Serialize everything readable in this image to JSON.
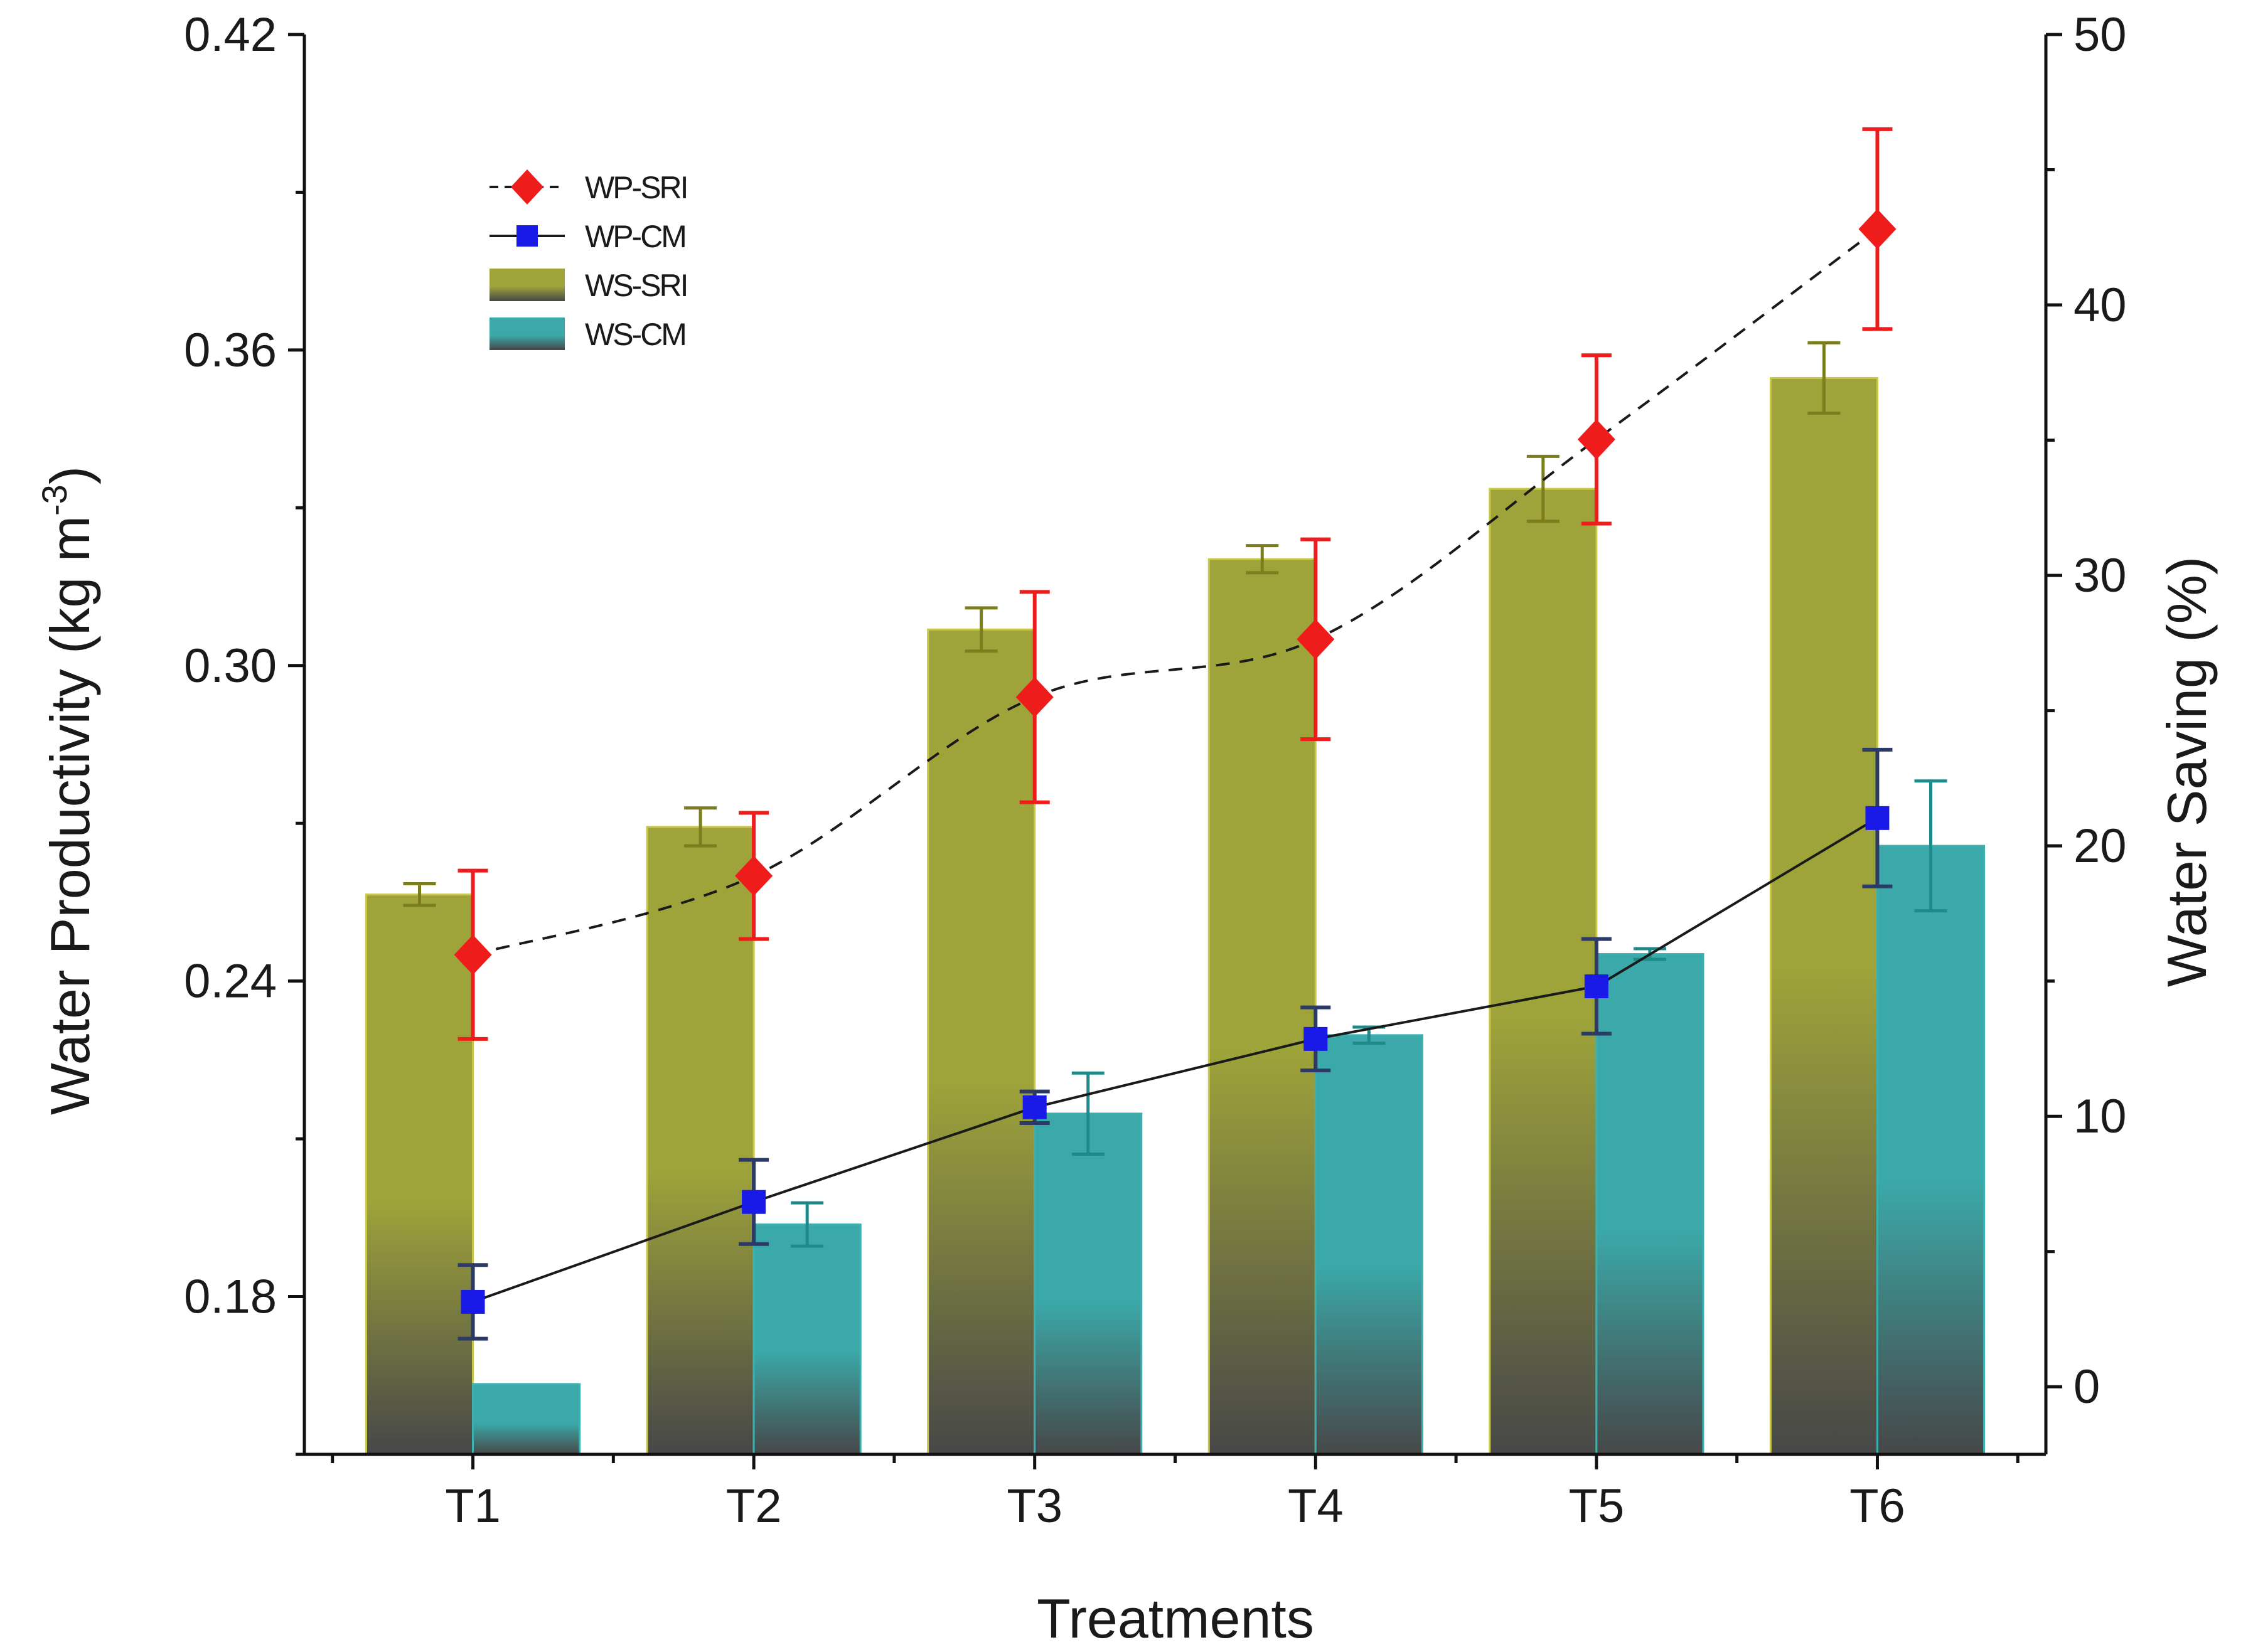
{
  "chart_data": {
    "type": "bar",
    "categories": [
      "T1",
      "T2",
      "T3",
      "T4",
      "T5",
      "T6"
    ],
    "xlabel": "Treatments",
    "ylabel": "Water Productivity (kg m",
    "ylabel_sup": "-3",
    "ylabel_close": ")",
    "y2label": "Water Saving (%)",
    "ylim": [
      0.15,
      0.42
    ],
    "y2lim": [
      -2.5,
      50
    ],
    "yticks": [
      0.18,
      0.24,
      0.3,
      0.36,
      0.42
    ],
    "ytick_labels": [
      "0.18",
      "0.24",
      "0.30",
      "0.36",
      "0.42"
    ],
    "y2ticks": [
      0,
      10,
      20,
      30,
      40,
      50
    ],
    "y2tick_labels": [
      "0",
      "10",
      "20",
      "30",
      "40",
      "50"
    ],
    "bar_series": [
      {
        "name": "WS-SRI",
        "axis": "right",
        "color": "#9ea33a",
        "color_dark": "#474748",
        "values": [
          18.2,
          20.7,
          28.0,
          30.6,
          33.2,
          37.3
        ],
        "errors": [
          0.4,
          0.7,
          0.8,
          0.5,
          1.2,
          1.3
        ]
      },
      {
        "name": "WS-CM",
        "axis": "right",
        "color": "#3ba9a9",
        "color_dark": "#474748",
        "values": [
          0.1,
          6.0,
          10.1,
          13.0,
          16.0,
          20.0
        ],
        "errors": [
          0.0,
          0.8,
          1.5,
          0.3,
          0.2,
          2.4
        ]
      }
    ],
    "line_series": [
      {
        "name": "WP-SRI",
        "axis": "left",
        "color": "#ef1c1c",
        "marker": "diamond",
        "line_style": "dashed",
        "values": [
          0.245,
          0.26,
          0.294,
          0.305,
          0.343,
          0.383
        ],
        "errors": [
          0.016,
          0.012,
          0.02,
          0.019,
          0.016,
          0.019
        ]
      },
      {
        "name": "WP-CM",
        "axis": "left",
        "color": "#1a1ae8",
        "marker": "square",
        "line_style": "solid",
        "values": [
          0.179,
          0.198,
          0.216,
          0.229,
          0.239,
          0.271
        ],
        "errors": [
          0.007,
          0.008,
          0.003,
          0.006,
          0.009,
          0.013
        ]
      }
    ],
    "legend": {
      "position": "top-left",
      "entries": [
        "WP-SRI",
        "WP-CM",
        "WS-SRI",
        "WS-CM"
      ]
    },
    "grid": false
  }
}
